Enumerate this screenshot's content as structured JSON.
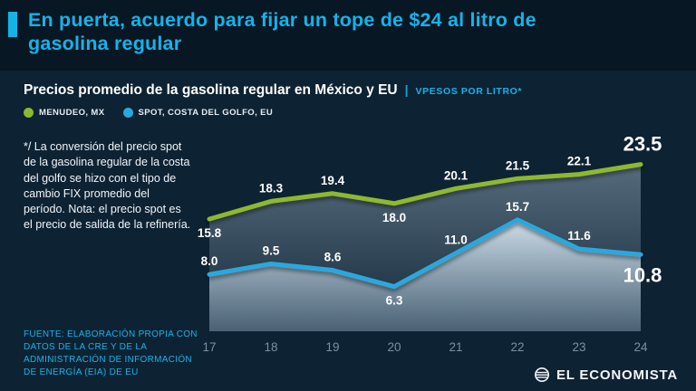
{
  "header": {
    "title": "En puerta, acuerdo para fijar un tope de $24 al litro de gasolina regular"
  },
  "chart": {
    "title": "Precios promedio de la gasolina regular en México y EU",
    "divider": "|",
    "units": "VPESOS POR LITRO*",
    "legend": [
      {
        "label": "MENUDEO, MX",
        "color": "#8cb92f"
      },
      {
        "label": "SPOT, COSTA DEL GOLFO, EU",
        "color": "#2aa8dd"
      }
    ]
  },
  "notes": {
    "asterisk": "*/ La conversión del precio spot de la gasolina regular de la costa del golfo se hizo con el tipo de cambio FIX promedio del período. Nota: el precio spot es el precio de salida de la refinería.",
    "source": "FUENTE: ELABORACIÓN PROPIA CON DATOS DE LA CRE Y DE LA ADMINISTRACIÓN DE INFORMACIÓN DE ENERGÍA (EIA) DE EU"
  },
  "footer": {
    "brand": "EL ECONOMISTA"
  },
  "colors": {
    "accent": "#12b3e6",
    "headline": "#14b4ea",
    "background": "#081724",
    "panel": "#0d2233",
    "green": "#8cb92f",
    "blue": "#2aa8dd",
    "axis_labels": "#7c90a1"
  },
  "chart_data": {
    "type": "line",
    "categories": [
      "17",
      "18",
      "19",
      "20",
      "21",
      "22",
      "23",
      "24"
    ],
    "series": [
      {
        "name": "MENUDEO, MX",
        "color": "#8cb92f",
        "values": [
          15.8,
          18.3,
          19.4,
          18.0,
          20.1,
          21.5,
          22.1,
          23.5
        ],
        "label_pos": [
          "below",
          "above",
          "above",
          "below",
          "above",
          "above",
          "above",
          "above"
        ]
      },
      {
        "name": "SPOT, COSTA DEL GOLFO, EU",
        "color": "#2aa8dd",
        "values": [
          8.0,
          9.5,
          8.6,
          6.3,
          11.0,
          15.7,
          11.6,
          10.8
        ],
        "label_pos": [
          "above",
          "above",
          "above",
          "below",
          "above",
          "above",
          "above",
          "below"
        ]
      }
    ],
    "title": "Precios promedio de la gasolina regular en México y EU",
    "xlabel": "",
    "ylabel": "PESOS POR LITRO",
    "ylim": [
      0,
      26
    ],
    "grid": false,
    "legend_position": "top-left",
    "area_fill": true,
    "highlight_last_point_labels": true
  }
}
